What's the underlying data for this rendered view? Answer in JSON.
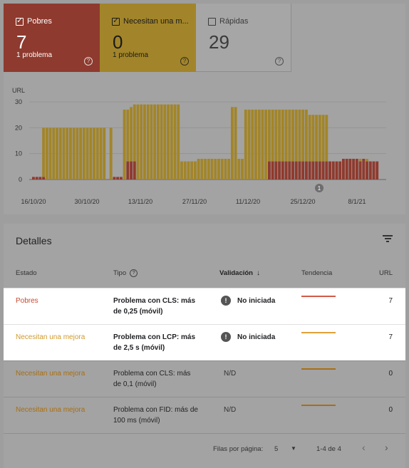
{
  "tiles": [
    {
      "label": "Pobres",
      "count": "7",
      "sub": "1 problema",
      "checked": true
    },
    {
      "label": "Necesitan una m...",
      "count": "0",
      "sub": "1 problema",
      "checked": true
    },
    {
      "label": "Rápidas",
      "count": "29",
      "sub": "",
      "checked": false
    }
  ],
  "chart_data": {
    "type": "bar",
    "ylabel": "URL",
    "yticks": [
      0,
      10,
      20,
      30
    ],
    "ylim": [
      0,
      30
    ],
    "xticks": [
      "16/10/20",
      "30/10/20",
      "13/11/20",
      "27/11/20",
      "11/12/20",
      "25/12/20",
      "8/1/21"
    ],
    "annotation": "1",
    "stacked": true,
    "series": [
      {
        "name": "Pobres",
        "color": "#8e3a2e",
        "values": [
          1,
          1,
          1,
          1,
          0,
          0,
          0,
          0,
          0,
          0,
          0,
          0,
          0,
          0,
          0,
          0,
          0,
          0,
          0,
          0,
          0,
          0,
          0,
          0,
          1,
          1,
          1,
          0,
          7,
          7,
          7,
          0,
          0,
          0,
          0,
          0,
          0,
          0,
          0,
          0,
          0,
          0,
          0,
          0,
          0,
          0,
          0,
          0,
          0,
          0,
          0,
          0,
          0,
          0,
          0,
          0,
          0,
          0,
          0,
          0,
          0,
          0,
          0,
          0,
          0,
          0,
          0,
          0,
          0,
          0,
          7,
          7,
          7,
          7,
          7,
          7,
          7,
          7,
          7,
          7,
          7,
          7,
          7,
          7,
          7,
          7,
          7,
          7,
          7,
          7,
          7,
          7,
          8,
          8,
          8,
          8,
          8,
          7,
          8,
          7,
          7,
          7,
          7
        ]
      },
      {
        "name": "Necesitan una mejora",
        "color": "#a2852a",
        "values": [
          0,
          0,
          0,
          19,
          20,
          20,
          20,
          20,
          20,
          20,
          20,
          20,
          20,
          20,
          20,
          20,
          20,
          20,
          20,
          20,
          20,
          20,
          0,
          20,
          0,
          0,
          0,
          27,
          20,
          21,
          22,
          29,
          29,
          29,
          29,
          29,
          29,
          29,
          29,
          29,
          29,
          29,
          29,
          29,
          7,
          7,
          7,
          7,
          7,
          8,
          8,
          8,
          8,
          8,
          8,
          8,
          8,
          8,
          8,
          28,
          28,
          8,
          8,
          27,
          27,
          27,
          27,
          27,
          27,
          27,
          20,
          20,
          20,
          20,
          20,
          20,
          20,
          20,
          20,
          20,
          20,
          20,
          18,
          18,
          18,
          18,
          18,
          18,
          0,
          0,
          0,
          0,
          0,
          0,
          0,
          0,
          0,
          1,
          0,
          1,
          0,
          0,
          0
        ]
      }
    ]
  },
  "details": {
    "title": "Detalles",
    "columns": {
      "estado": "Estado",
      "tipo": "Tipo",
      "validacion": "Validación",
      "tendencia": "Tendencia",
      "url": "URL"
    },
    "rows": [
      {
        "estado": "Pobres",
        "tipo": "Problema con CLS: más de 0,25 (móvil)",
        "validacion": "No iniciada",
        "url": "7"
      },
      {
        "estado": "Necesitan una mejora",
        "tipo": "Problema con LCP: más de 2,5 s (móvil)",
        "validacion": "No iniciada",
        "url": "7"
      },
      {
        "estado": "Necesitan una mejora",
        "tipo": "Problema con CLS: más de 0,1 (móvil)",
        "validacion": "N/D",
        "url": "0"
      },
      {
        "estado": "Necesitan una mejora",
        "tipo": "Problema con FID: más de 100 ms (móvil)",
        "validacion": "N/D",
        "url": "0"
      }
    ],
    "footer": {
      "rows_per_page_label": "Filas por página:",
      "rows_per_page": "5",
      "range": "1-4 de 4"
    }
  },
  "colors": {
    "poor": "#c5482f",
    "improve": "#d19a2c",
    "poor_tile": "#8e3a2e",
    "improve_tile": "#a2852a"
  }
}
